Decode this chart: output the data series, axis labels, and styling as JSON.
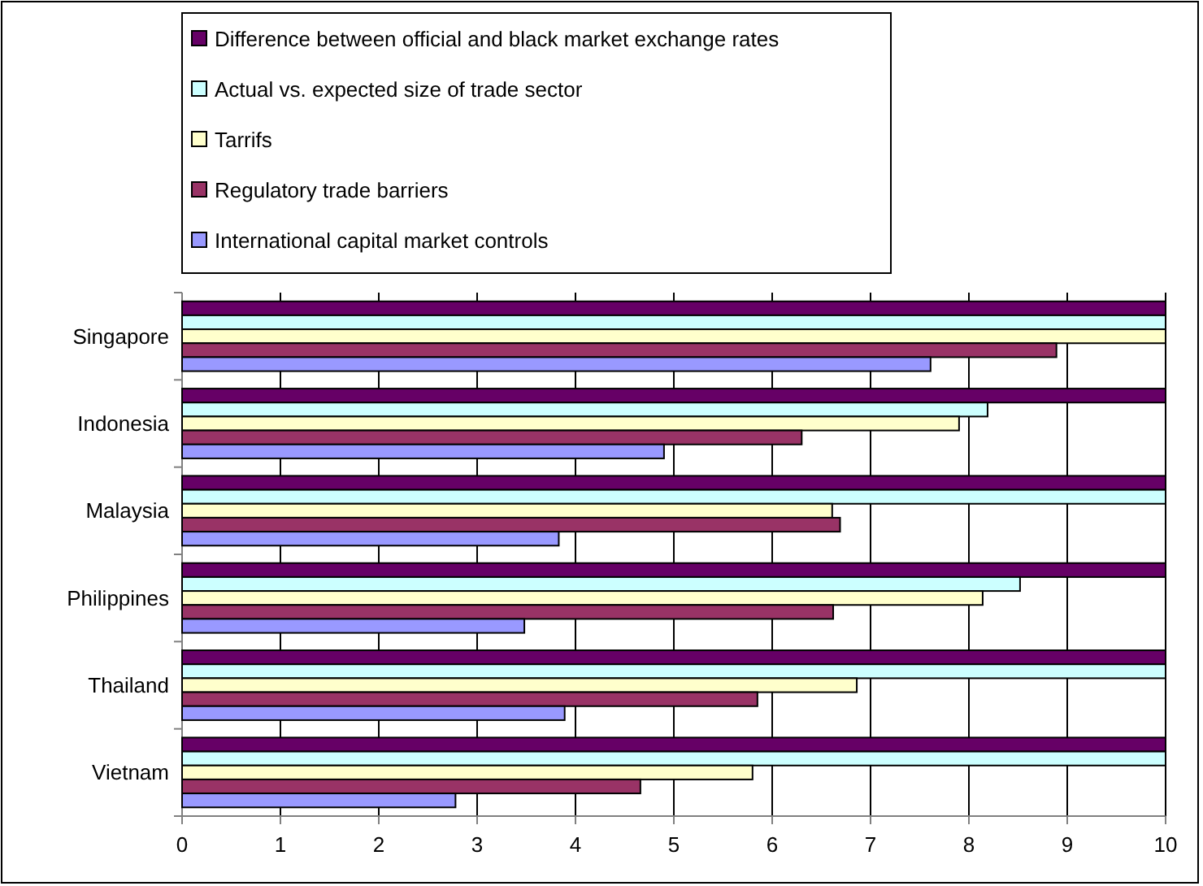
{
  "chart_data": {
    "type": "bar",
    "orientation": "horizontal",
    "categories": [
      "Singapore",
      "Indonesia",
      "Malaysia",
      "Philippines",
      "Thailand",
      "Vietnam"
    ],
    "series": [
      {
        "name": "Difference between official and black market exchange rates",
        "color": "#660066",
        "values": [
          10,
          10,
          10,
          10,
          10,
          10
        ]
      },
      {
        "name": "Actual vs. expected size of trade sector",
        "color": "#ccffff",
        "values": [
          10,
          8.19,
          10,
          8.52,
          10,
          10
        ]
      },
      {
        "name": "Tarrifs",
        "color": "#ffffcc",
        "values": [
          10,
          7.9,
          6.61,
          8.14,
          6.86,
          5.8
        ]
      },
      {
        "name": "Regulatory trade barriers",
        "color": "#993366",
        "values": [
          8.89,
          6.3,
          6.69,
          6.62,
          5.85,
          4.66
        ]
      },
      {
        "name": "International capital market controls",
        "color": "#9999ff",
        "values": [
          7.61,
          4.9,
          3.83,
          3.48,
          3.89,
          2.78
        ]
      }
    ],
    "xlim": [
      0,
      10
    ],
    "xticks": [
      0,
      1,
      2,
      3,
      4,
      5,
      6,
      7,
      8,
      9,
      10
    ],
    "grid": "x",
    "legend": "top"
  }
}
